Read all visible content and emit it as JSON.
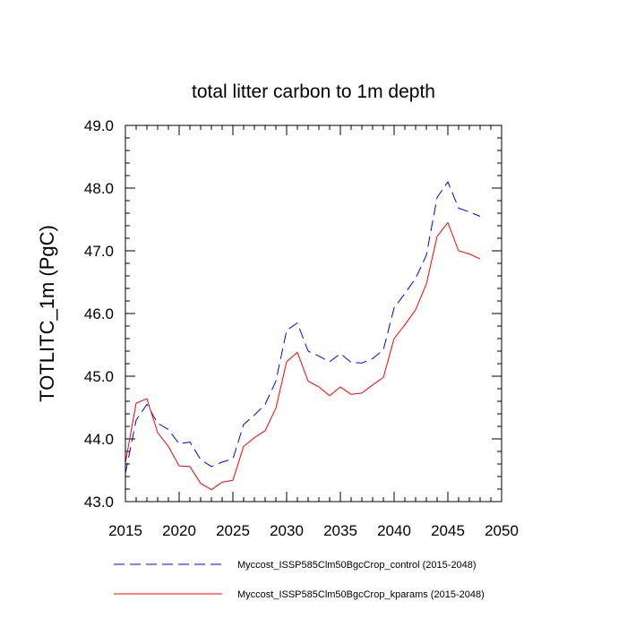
{
  "chart_data": {
    "type": "line",
    "title": "total litter carbon to 1m depth",
    "xlabel": "",
    "ylabel": "TOTLITC_1m  (PgC)",
    "xlim": [
      2015,
      2050
    ],
    "ylim": [
      43.0,
      49.0
    ],
    "x_ticks": [
      2015,
      2020,
      2025,
      2030,
      2035,
      2040,
      2045,
      2050
    ],
    "x_tick_labels": [
      "2015",
      "2020",
      "2025",
      "2030",
      "2035",
      "2040",
      "2045",
      "2050"
    ],
    "y_ticks": [
      43.0,
      44.0,
      45.0,
      46.0,
      47.0,
      48.0,
      49.0
    ],
    "y_tick_labels": [
      "43.0",
      "44.0",
      "45.0",
      "46.0",
      "47.0",
      "48.0",
      "49.0"
    ],
    "grid": false,
    "legend_position": "bottom",
    "x": [
      2015,
      2016,
      2017,
      2018,
      2019,
      2020,
      2021,
      2022,
      2023,
      2024,
      2025,
      2026,
      2027,
      2028,
      2029,
      2030,
      2031,
      2032,
      2033,
      2034,
      2035,
      2036,
      2037,
      2038,
      2039,
      2040,
      2041,
      2042,
      2043,
      2044,
      2045,
      2046,
      2047,
      2048
    ],
    "series": [
      {
        "name": "Myccost_ISSP585Clm50BgcCrop_control (2015-2048)",
        "color": "#0000ff",
        "dash": "dashed",
        "values": [
          43.45,
          44.3,
          44.55,
          44.25,
          44.15,
          43.92,
          43.95,
          43.67,
          43.56,
          43.63,
          43.68,
          44.23,
          44.38,
          44.55,
          44.92,
          45.73,
          45.85,
          45.4,
          45.32,
          45.23,
          45.36,
          45.22,
          45.21,
          45.28,
          45.42,
          46.09,
          46.32,
          46.56,
          46.93,
          47.85,
          48.1,
          47.68,
          47.62,
          47.55
        ]
      },
      {
        "name": "Myccost_ISSP585Clm50BgcCrop_kparams (2015-2048)",
        "color": "#ff0000",
        "dash": "solid",
        "values": [
          43.62,
          44.57,
          44.64,
          44.1,
          43.88,
          43.57,
          43.56,
          43.29,
          43.19,
          43.31,
          43.34,
          43.88,
          44.02,
          44.13,
          44.49,
          45.23,
          45.38,
          44.92,
          44.83,
          44.69,
          44.83,
          44.71,
          44.73,
          44.86,
          44.98,
          45.6,
          45.82,
          46.06,
          46.47,
          47.23,
          47.45,
          47.0,
          46.95,
          46.87
        ]
      }
    ]
  }
}
